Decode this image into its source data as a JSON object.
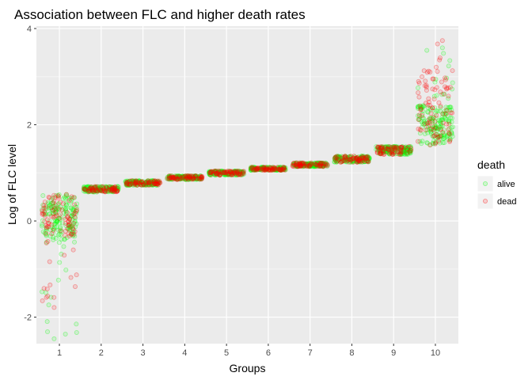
{
  "chart_data": {
    "type": "scatter",
    "title": "Association between FLC and higher death rates",
    "xlabel": "Groups",
    "ylabel": "Log of FLC level",
    "categories": [
      "1",
      "2",
      "3",
      "4",
      "5",
      "6",
      "7",
      "8",
      "9",
      "10"
    ],
    "y_ticks": [
      "-2",
      "0",
      "2",
      "4"
    ],
    "y_tick_values": [
      -2,
      0,
      2,
      4
    ],
    "ylim": [
      -2.55,
      4.05
    ],
    "grid": true,
    "jitter": "points jittered horizontally within each group",
    "legend": {
      "title": "death",
      "position": "right",
      "entries": [
        {
          "label": "alive",
          "color": "#00ff00"
        },
        {
          "label": "dead",
          "color": "#ff0000"
        }
      ]
    },
    "series": [
      {
        "name": "alive",
        "color": "#00ff00",
        "groups": [
          {
            "group": "1",
            "y_range": [
              -2.45,
              0.55
            ],
            "main_range": [
              -0.4,
              0.55
            ]
          },
          {
            "group": "2",
            "y_range": [
              0.6,
              0.72
            ]
          },
          {
            "group": "3",
            "y_range": [
              0.74,
              0.84
            ]
          },
          {
            "group": "4",
            "y_range": [
              0.86,
              0.94
            ]
          },
          {
            "group": "5",
            "y_range": [
              0.95,
              1.04
            ]
          },
          {
            "group": "6",
            "y_range": [
              1.05,
              1.12
            ]
          },
          {
            "group": "7",
            "y_range": [
              1.13,
              1.21
            ]
          },
          {
            "group": "8",
            "y_range": [
              1.22,
              1.35
            ]
          },
          {
            "group": "9",
            "y_range": [
              1.38,
              1.55
            ]
          },
          {
            "group": "10",
            "y_range": [
              1.58,
              3.6
            ],
            "main_range": [
              1.6,
              2.4
            ]
          }
        ]
      },
      {
        "name": "dead",
        "color": "#ff0000",
        "groups": [
          {
            "group": "1",
            "y_range": [
              -1.8,
              0.55
            ],
            "main_range": [
              -0.3,
              0.55
            ]
          },
          {
            "group": "2",
            "y_range": [
              0.6,
              0.72
            ]
          },
          {
            "group": "3",
            "y_range": [
              0.74,
              0.84
            ]
          },
          {
            "group": "4",
            "y_range": [
              0.86,
              0.94
            ]
          },
          {
            "group": "5",
            "y_range": [
              0.95,
              1.04
            ]
          },
          {
            "group": "6",
            "y_range": [
              1.05,
              1.12
            ]
          },
          {
            "group": "7",
            "y_range": [
              1.13,
              1.21
            ]
          },
          {
            "group": "8",
            "y_range": [
              1.22,
              1.35
            ]
          },
          {
            "group": "9",
            "y_range": [
              1.38,
              1.55
            ]
          },
          {
            "group": "10",
            "y_range": [
              1.58,
              3.75
            ],
            "main_range": [
              1.6,
              3.2
            ]
          }
        ]
      }
    ]
  },
  "colors": {
    "panel_background": "#ebebeb",
    "grid_major": "#ffffff",
    "alive": "#00ff00",
    "dead": "#ff0000"
  }
}
